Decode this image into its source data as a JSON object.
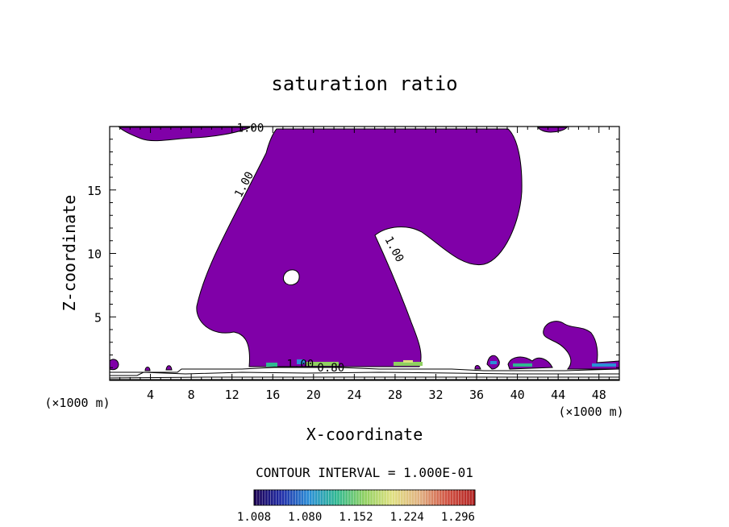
{
  "chart_data": {
    "type": "contour",
    "title": "saturation ratio",
    "xlabel": "X-coordinate",
    "ylabel": "Z-coordinate",
    "x_unit": "(×1000 m)",
    "y_unit": "(×1000 m)",
    "xlim": [
      0,
      50
    ],
    "ylim": [
      0,
      20
    ],
    "x_ticks": [
      "4",
      "8",
      "12",
      "16",
      "20",
      "24",
      "28",
      "32",
      "36",
      "40",
      "44",
      "48"
    ],
    "y_ticks": [
      "5",
      "10",
      "15"
    ],
    "contour_labels": [
      {
        "text": "1.00",
        "x": 13.8,
        "z": 19.6
      },
      {
        "text": "1.00",
        "x": 13.5,
        "z": 15.3
      },
      {
        "text": "1.00",
        "x": 27.6,
        "z": 10.2
      },
      {
        "text": "1.00",
        "x": 18.7,
        "z": 1.0
      },
      {
        "text": "0.80",
        "x": 21.7,
        "z": 0.7
      }
    ],
    "fill_threshold": 1.0,
    "fill_color": "#8000a8",
    "contour_interval_text": "CONTOUR INTERVAL = 1.000E-01",
    "colorbar": {
      "min": 1.008,
      "max": 1.32,
      "tick_labels": [
        "1.008",
        "1.080",
        "1.152",
        "1.224",
        "1.296"
      ],
      "colors": [
        "#1a0050",
        "#1f2ca8",
        "#2a8fd6",
        "#2fb890",
        "#8fd060",
        "#e0e080",
        "#e0b080",
        "#d05040",
        "#b02020"
      ]
    }
  }
}
